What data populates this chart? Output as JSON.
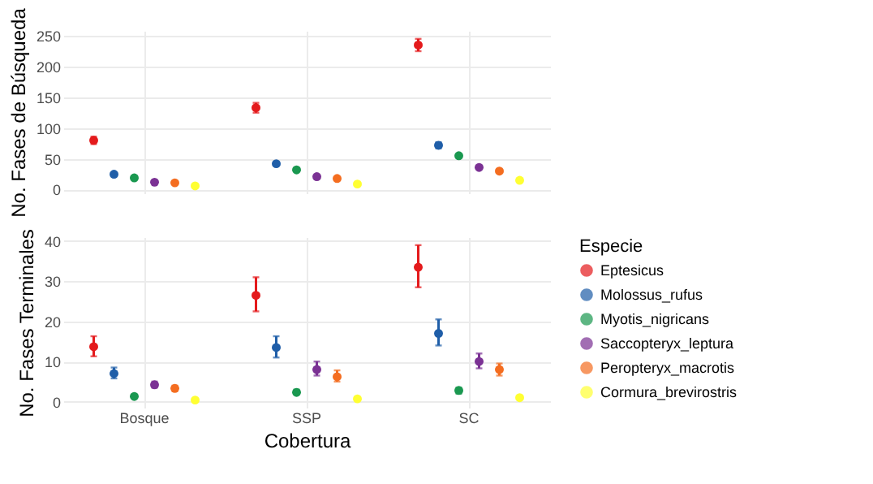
{
  "chart_data": [
    {
      "type": "scatter",
      "categories": [
        null,
        null,
        null
      ],
      "ylabel": "No. Fases de Búsqueda",
      "ylim": [
        -6,
        258
      ],
      "yticks": [
        0,
        50,
        100,
        150,
        200,
        250
      ],
      "grid": true,
      "marker": "circle",
      "tick_labels": "y",
      "legend": false,
      "series": [
        {
          "color": "#e41a1c",
          "values": [
            80,
            133,
            235
          ],
          "errors": [
            [
              74,
              86
            ],
            [
              125,
              141
            ],
            [
              225,
              245
            ]
          ]
        },
        {
          "color": "#1f5ea8",
          "values": [
            25,
            42,
            72
          ],
          "errors": [
            null,
            null,
            [
              67,
              77
            ]
          ]
        },
        {
          "color": "#1a9850",
          "values": [
            19,
            32,
            55
          ]
        },
        {
          "color": "#7b3294",
          "values": [
            12,
            21,
            36
          ]
        },
        {
          "color": "#f46d20",
          "values": [
            11,
            18,
            30
          ]
        },
        {
          "color": "#ffff33",
          "values": [
            6,
            9,
            15
          ]
        }
      ]
    },
    {
      "type": "scatter",
      "categories": [
        "Bosque",
        "SSP",
        "SC"
      ],
      "xlabel": "Cobertura",
      "ylabel": "No. Fases Terminales",
      "legend_title": "Especie",
      "legend": "right",
      "ylim": [
        -1.5,
        41
      ],
      "yticks": [
        0,
        10,
        20,
        30,
        40
      ],
      "grid": true,
      "marker": "circle",
      "series": [
        {
          "name": "Eptesicus",
          "color": "#e41a1c",
          "values": [
            13.7,
            26.5,
            33.5
          ],
          "errors": [
            [
              11.3,
              16.3
            ],
            [
              22.5,
              31
            ],
            [
              28.5,
              39
            ]
          ]
        },
        {
          "name": "Molossus_rufus",
          "color": "#1f5ea8",
          "values": [
            7,
            13.5,
            17
          ],
          "errors": [
            [
              5.8,
              8.5
            ],
            [
              11,
              16.3
            ],
            [
              14,
              20.5
            ]
          ]
        },
        {
          "name": "Myotis_nigricans",
          "color": "#1a9850",
          "values": [
            1.3,
            2.3,
            2.8
          ],
          "errors": [
            null,
            [
              1.8,
              3
            ],
            [
              2,
              3.5
            ]
          ]
        },
        {
          "name": "Saccopteryx_leptura",
          "color": "#7b3294",
          "values": [
            4.2,
            8,
            10
          ],
          "errors": [
            [
              3.5,
              5
            ],
            [
              6.5,
              10
            ],
            [
              8.3,
              12
            ]
          ]
        },
        {
          "name": "Peropteryx_macrotis",
          "color": "#f46d20",
          "values": [
            3.3,
            6.2,
            8
          ],
          "errors": [
            [
              2.7,
              4
            ],
            [
              5,
              7.8
            ],
            [
              6.5,
              9.5
            ]
          ]
        },
        {
          "name": "Cormura_brevirostris",
          "color": "#ffff33",
          "values": [
            0.4,
            0.7,
            1
          ]
        }
      ]
    }
  ]
}
